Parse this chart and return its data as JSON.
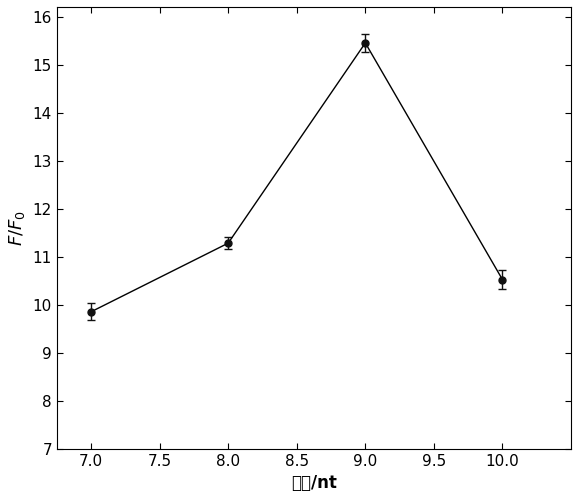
{
  "x": [
    7.0,
    8.0,
    9.0,
    10.0
  ],
  "y": [
    9.85,
    11.28,
    15.45,
    10.52
  ],
  "yerr": [
    0.18,
    0.12,
    0.18,
    0.2
  ],
  "xlabel": "基数/nt",
  "xlim": [
    6.75,
    10.5
  ],
  "ylim": [
    7,
    16.2
  ],
  "yticks": [
    7,
    8,
    9,
    10,
    11,
    12,
    13,
    14,
    15,
    16
  ],
  "xticks": [
    7.0,
    7.5,
    8.0,
    8.5,
    9.0,
    9.5,
    10.0
  ],
  "line_color": "#000000",
  "marker_color": "#111111",
  "background_color": "#ffffff",
  "figsize": [
    5.78,
    4.99
  ],
  "dpi": 100
}
